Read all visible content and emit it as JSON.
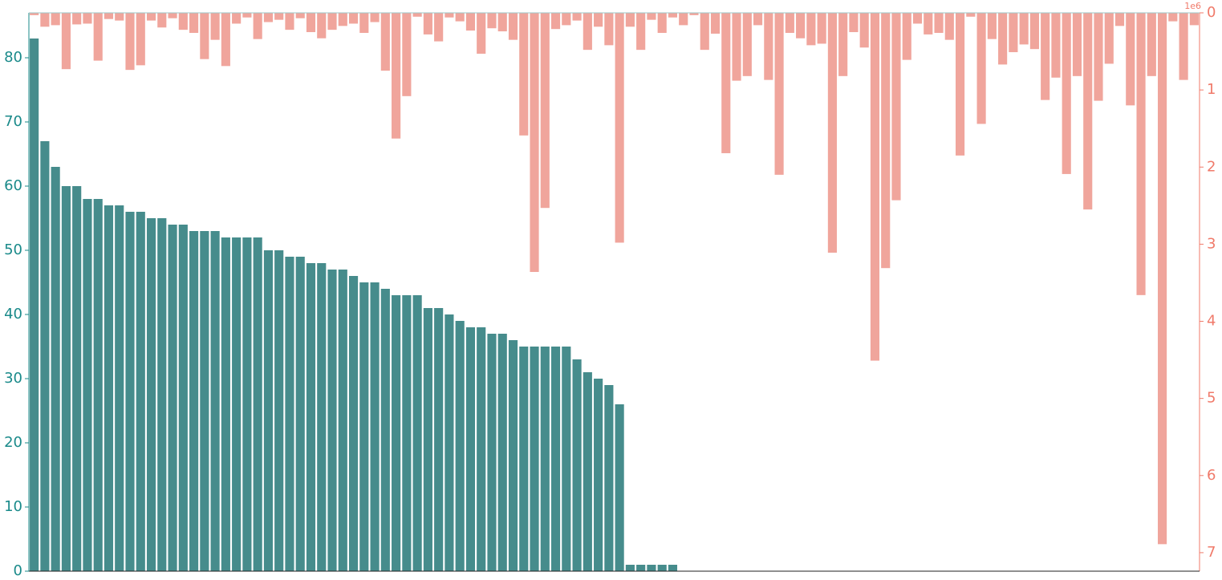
{
  "chart_data": {
    "type": "bar",
    "series": [
      {
        "color": "#468c8c",
        "values": [
          83,
          67,
          63,
          60,
          60,
          58,
          58,
          57,
          57,
          56,
          56,
          55,
          55,
          54,
          54,
          53,
          53,
          53,
          52,
          52,
          52,
          52,
          50,
          50,
          49,
          49,
          48,
          48,
          47,
          47,
          46,
          45,
          45,
          44,
          43,
          43,
          43,
          41,
          41,
          40,
          39,
          38,
          38,
          37,
          37,
          36,
          35,
          35,
          35,
          35,
          35,
          33,
          31,
          30,
          29,
          26,
          1,
          1,
          1,
          1,
          1,
          0,
          0,
          0,
          0,
          0,
          0,
          0,
          0,
          0,
          0,
          0,
          0,
          0,
          0,
          0,
          0,
          0,
          0,
          0,
          0,
          0,
          0,
          0,
          0,
          0,
          0,
          0,
          0,
          0,
          0,
          0,
          0,
          0,
          0,
          0,
          0,
          0,
          0,
          0,
          0,
          0,
          0,
          0,
          0,
          0,
          0,
          0,
          0,
          0
        ]
      },
      {
        "color": "#f0a59c",
        "axis": "y2",
        "values": [
          0.03,
          0.18,
          0.16,
          0.73,
          0.15,
          0.14,
          0.62,
          0.08,
          0.1,
          0.74,
          0.68,
          0.1,
          0.19,
          0.07,
          0.22,
          0.26,
          0.6,
          0.35,
          0.69,
          0.14,
          0.06,
          0.34,
          0.12,
          0.09,
          0.22,
          0.07,
          0.25,
          0.33,
          0.22,
          0.17,
          0.14,
          0.26,
          0.12,
          0.75,
          1.63,
          1.08,
          0.05,
          0.28,
          0.37,
          0.06,
          0.11,
          0.23,
          0.53,
          0.2,
          0.24,
          0.35,
          1.59,
          3.36,
          2.53,
          0.21,
          0.16,
          0.1,
          0.48,
          0.18,
          0.42,
          2.98,
          0.18,
          0.48,
          0.09,
          0.26,
          0.06,
          0.16,
          0.03,
          0.48,
          0.27,
          1.82,
          0.88,
          0.82,
          0.16,
          0.87,
          2.1,
          0.26,
          0.33,
          0.42,
          0.4,
          3.11,
          0.82,
          0.25,
          0.45,
          4.51,
          3.31,
          2.43,
          0.61,
          0.14,
          0.28,
          0.26,
          0.35,
          1.85,
          0.05,
          1.44,
          0.34,
          0.67,
          0.51,
          0.41,
          0.47,
          1.13,
          0.84,
          2.09,
          0.82,
          2.55,
          1.14,
          0.66,
          0.17,
          1.2,
          3.66,
          0.82,
          6.89,
          0.11,
          0.87,
          0.16
        ]
      }
    ],
    "ylim": [
      0,
      87
    ],
    "yticks": [
      0,
      10,
      20,
      30,
      40,
      50,
      60,
      70,
      80
    ],
    "y_color": "#1a8a8a",
    "y2lim": [
      0,
      7.24
    ],
    "y2ticks": [
      0,
      1,
      2,
      3,
      4,
      5,
      6,
      7
    ],
    "y2_color": "#f07a6a",
    "y2_inverted": true,
    "y2_offset_label": "1e6"
  }
}
